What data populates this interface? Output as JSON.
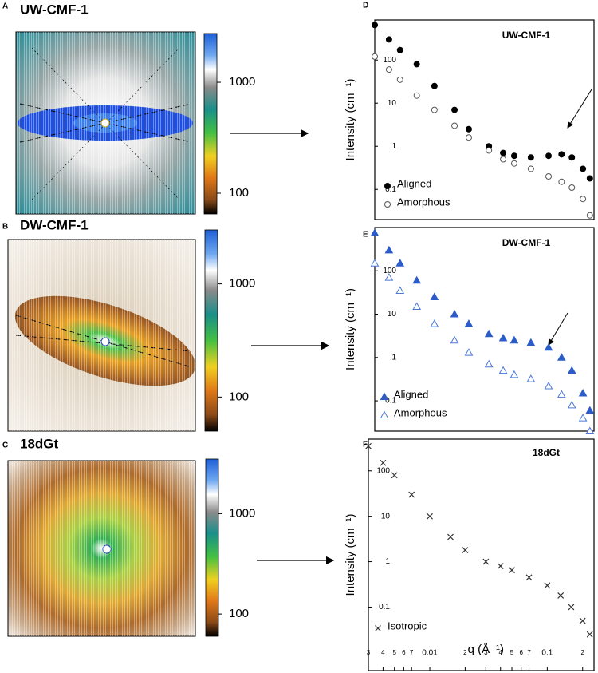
{
  "chart_data": [
    {
      "type": "image",
      "panel": "A",
      "title": "UW-CMF-1",
      "colorbar": {
        "log": true,
        "lim": [
          65,
          2750
        ],
        "ticks": [
          100,
          1000
        ]
      }
    },
    {
      "type": "image",
      "panel": "B",
      "title": "DW-CMF-1",
      "colorbar": {
        "log": true,
        "lim": [
          50,
          3000
        ],
        "ticks": [
          100,
          1000
        ]
      }
    },
    {
      "type": "image",
      "panel": "C",
      "title": "18dGt",
      "colorbar": {
        "log": true,
        "lim": [
          60,
          3500
        ],
        "ticks": [
          100,
          1000
        ]
      }
    },
    {
      "type": "scatter",
      "panel": "D",
      "title": "UW-CMF-1",
      "y_label": "Intensity (cm⁻¹)",
      "xlog": true,
      "ylog": true,
      "xlim": [
        0.003,
        0.25
      ],
      "ylim": [
        0.02,
        850
      ],
      "yticks": [
        0.1,
        1,
        10,
        100
      ],
      "legend": "lower left",
      "x": [
        0.003,
        0.004,
        0.005,
        0.007,
        0.01,
        0.015,
        0.02,
        0.03,
        0.04,
        0.05,
        0.07,
        0.1,
        0.13,
        0.16,
        0.2,
        0.23
      ],
      "series": [
        {
          "name": "Aligned",
          "color": "#000000",
          "marker": "circle",
          "filled": true,
          "values": [
            650,
            300,
            170,
            80,
            25,
            7,
            2.5,
            1.0,
            0.7,
            0.6,
            0.55,
            0.6,
            0.65,
            0.55,
            0.3,
            0.18
          ]
        },
        {
          "name": "Amorphous",
          "color": "#555555",
          "marker": "circle",
          "filled": false,
          "values": [
            120,
            60,
            35,
            15,
            7,
            3,
            1.6,
            0.8,
            0.5,
            0.4,
            0.3,
            0.2,
            0.15,
            0.11,
            0.06,
            0.025
          ]
        }
      ]
    },
    {
      "type": "scatter",
      "panel": "E",
      "title": "DW-CMF-1",
      "y_label": "Intensity (cm⁻¹)",
      "xlog": true,
      "ylog": true,
      "xlim": [
        0.003,
        0.25
      ],
      "ylim": [
        0.02,
        1000
      ],
      "yticks": [
        0.1,
        1,
        10,
        100
      ],
      "legend": "lower left",
      "x": [
        0.003,
        0.004,
        0.005,
        0.007,
        0.01,
        0.015,
        0.02,
        0.03,
        0.04,
        0.05,
        0.07,
        0.1,
        0.13,
        0.16,
        0.2,
        0.23
      ],
      "series": [
        {
          "name": "Aligned",
          "color": "#2b5cc8",
          "marker": "triangle",
          "filled": true,
          "values": [
            750,
            300,
            150,
            60,
            25,
            10,
            6,
            3.5,
            2.8,
            2.5,
            2.2,
            1.7,
            1.0,
            0.5,
            0.15,
            0.06
          ]
        },
        {
          "name": "Amorphous",
          "color": "#4a78d8",
          "marker": "triangle",
          "filled": false,
          "values": [
            150,
            70,
            35,
            15,
            6,
            2.5,
            1.3,
            0.7,
            0.5,
            0.4,
            0.32,
            0.22,
            0.14,
            0.08,
            0.04,
            0.02
          ]
        }
      ]
    },
    {
      "type": "scatter",
      "panel": "F",
      "title": "18dGt",
      "y_label": "Intensity (cm⁻¹)",
      "x_label": "q (Å⁻¹)",
      "xlog": true,
      "ylog": true,
      "xlim": [
        0.003,
        0.25
      ],
      "ylim": [
        0.004,
        500
      ],
      "yticks": [
        0.1,
        1,
        10,
        100
      ],
      "legend": "lower left",
      "xticks": [
        {
          "value": 0.003,
          "label": "3"
        },
        {
          "value": 0.004,
          "label": "4"
        },
        {
          "value": 0.005,
          "label": "5"
        },
        {
          "value": 0.006,
          "label": "6"
        },
        {
          "value": 0.007,
          "label": "7"
        },
        0.01,
        {
          "value": 0.02,
          "label": "2"
        },
        {
          "value": 0.03,
          "label": "3"
        },
        {
          "value": 0.04,
          "label": "4"
        },
        {
          "value": 0.05,
          "label": "5"
        },
        {
          "value": 0.06,
          "label": "6"
        },
        {
          "value": 0.07,
          "label": "7"
        },
        0.1,
        {
          "value": 0.2,
          "label": "2"
        }
      ],
      "x": [
        0.003,
        0.004,
        0.005,
        0.007,
        0.01,
        0.015,
        0.02,
        0.03,
        0.04,
        0.05,
        0.07,
        0.1,
        0.13,
        0.16,
        0.2,
        0.23
      ],
      "series": [
        {
          "name": "Isotropic",
          "color": "#333333",
          "marker": "x",
          "filled": false,
          "values": [
            350,
            150,
            80,
            30,
            10,
            3.5,
            1.8,
            1.0,
            0.8,
            0.65,
            0.45,
            0.3,
            0.18,
            0.1,
            0.05,
            0.025
          ]
        }
      ]
    }
  ]
}
